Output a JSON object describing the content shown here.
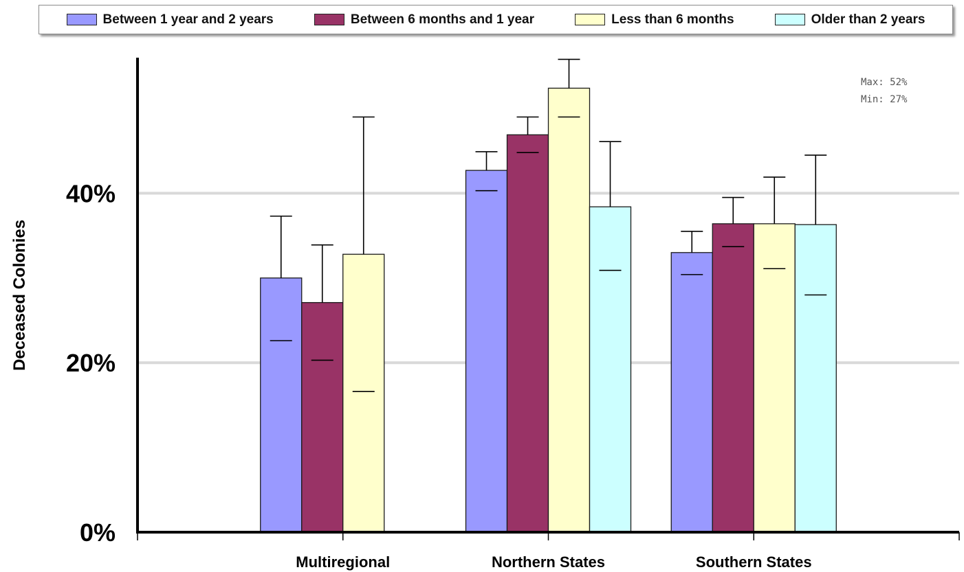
{
  "chart_data": {
    "type": "bar",
    "ylabel": "Deceased Colonies",
    "xlabel": "",
    "ylim": [
      0,
      0.56
    ],
    "y_ticks": [
      0,
      0.2,
      0.4
    ],
    "y_tick_labels": [
      "0%",
      "20%",
      "40%"
    ],
    "grid": true,
    "legend_position": "top",
    "categories": [
      "Multiregional",
      "Northern States",
      "Southern States"
    ],
    "series": [
      {
        "name": "Between 1 year and 2 years",
        "color": "#9999ff",
        "values": [
          0.3,
          0.427,
          0.33
        ],
        "err_upper": [
          0.373,
          0.449,
          0.355
        ],
        "lower_marker": [
          0.226,
          0.403,
          0.304
        ]
      },
      {
        "name": "Between 6 months and 1 year",
        "color": "#993366",
        "values": [
          0.271,
          0.469,
          0.364
        ],
        "err_upper": [
          0.339,
          0.49,
          0.395
        ],
        "lower_marker": [
          0.203,
          0.448,
          0.337
        ]
      },
      {
        "name": "Less than 6 months",
        "color": "#ffffcc",
        "values": [
          0.328,
          0.524,
          0.364
        ],
        "err_upper": [
          0.49,
          0.558,
          0.419
        ],
        "lower_marker": [
          0.166,
          0.49,
          0.311
        ]
      },
      {
        "name": "Older than 2 years",
        "color": "#ccffff",
        "values": [
          null,
          0.384,
          0.363
        ],
        "err_upper": [
          null,
          0.461,
          0.445
        ],
        "lower_marker": [
          null,
          0.309,
          0.28
        ]
      }
    ],
    "annotations": [
      "Max: 52%",
      "Min: 27%"
    ]
  }
}
